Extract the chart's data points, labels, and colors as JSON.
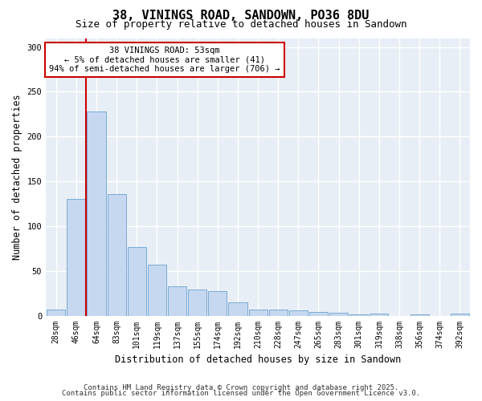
{
  "title1": "38, VININGS ROAD, SANDOWN, PO36 8DU",
  "title2": "Size of property relative to detached houses in Sandown",
  "xlabel": "Distribution of detached houses by size in Sandown",
  "ylabel": "Number of detached properties",
  "categories": [
    "28sqm",
    "46sqm",
    "64sqm",
    "83sqm",
    "101sqm",
    "119sqm",
    "137sqm",
    "155sqm",
    "174sqm",
    "192sqm",
    "210sqm",
    "228sqm",
    "247sqm",
    "265sqm",
    "283sqm",
    "301sqm",
    "319sqm",
    "338sqm",
    "356sqm",
    "374sqm",
    "392sqm"
  ],
  "values": [
    7,
    130,
    228,
    136,
    77,
    57,
    33,
    29,
    27,
    15,
    7,
    7,
    6,
    4,
    3,
    1,
    2,
    0,
    1,
    0,
    2
  ],
  "bar_color": "#c5d8f0",
  "bar_edge_color": "#7aaad4",
  "property_line_x": 1.5,
  "property_line_color": "#cc0000",
  "annotation_line1": "38 VININGS ROAD: 53sqm",
  "annotation_line2": "← 5% of detached houses are smaller (41)",
  "annotation_line3": "94% of semi-detached houses are larger (706) →",
  "annotation_box_color": "#ffffff",
  "annotation_box_edge_color": "#cc0000",
  "ylim": [
    0,
    310
  ],
  "yticks": [
    0,
    50,
    100,
    150,
    200,
    250,
    300
  ],
  "plot_bg_color": "#e8eef5",
  "footer1": "Contains HM Land Registry data © Crown copyright and database right 2025.",
  "footer2": "Contains public sector information licensed under the Open Government Licence v3.0.",
  "title_fontsize": 11,
  "subtitle_fontsize": 9,
  "tick_fontsize": 7,
  "label_fontsize": 8.5,
  "annotation_fontsize": 7.5,
  "footer_fontsize": 6.5
}
